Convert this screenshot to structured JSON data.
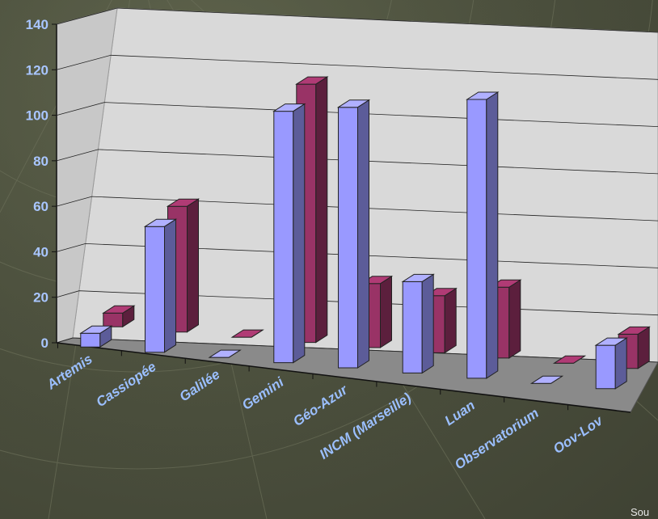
{
  "chart_data": {
    "type": "bar",
    "categories": [
      "Artemis",
      "Cassiopée",
      "Galilée",
      "Gemini",
      "Géo-Azur",
      "INCM (Marseille)",
      "Luan",
      "Observatorium",
      "Oov-Lov"
    ],
    "series": [
      {
        "values": [
          6,
          55,
          0,
          110,
          114,
          40,
          122,
          0,
          19
        ]
      },
      {
        "values": [
          6,
          55,
          0,
          113,
          28,
          25,
          31,
          0,
          15
        ]
      }
    ],
    "ylim": [
      0,
      140
    ],
    "yticks": [
      "0",
      "20",
      "40",
      "60",
      "80",
      "100",
      "120",
      "140"
    ],
    "colors": {
      "series0": "#9999ff",
      "series1": "#993366"
    },
    "grid": true,
    "three_d": true
  },
  "footer": {
    "corner_text": "Sou"
  }
}
